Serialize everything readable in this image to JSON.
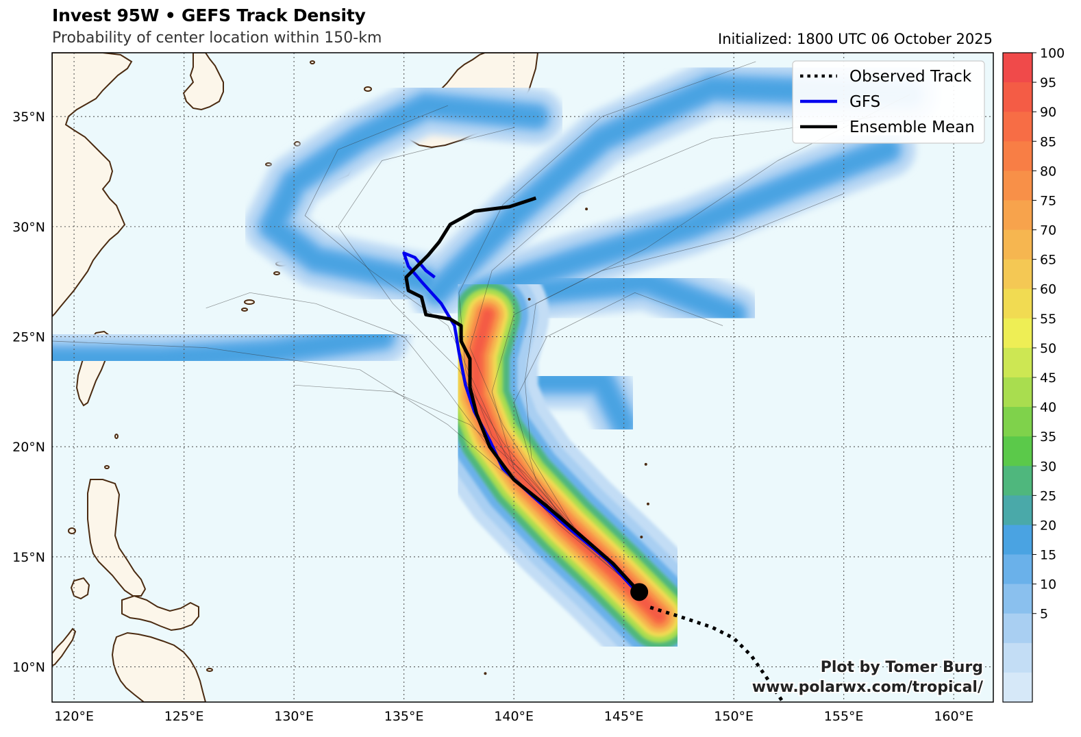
{
  "header": {
    "title": "Invest 95W • GEFS Track Density",
    "subtitle": "Probability of center location within 150-km",
    "initialized": "Initialized: 1800 UTC 06 October 2025"
  },
  "axes": {
    "lat_labels": [
      "35°N",
      "30°N",
      "25°N",
      "20°N",
      "15°N",
      "10°N"
    ],
    "lon_labels": [
      "120°E",
      "125°E",
      "130°E",
      "135°E",
      "140°E",
      "145°E",
      "150°E",
      "155°E",
      "160°E"
    ]
  },
  "legend": {
    "items": [
      {
        "label": "Observed Track",
        "style": "dotted",
        "color": "#000000"
      },
      {
        "label": "GFS",
        "style": "solid",
        "color": "#0000ee"
      },
      {
        "label": "Ensemble Mean",
        "style": "solid",
        "color": "#000000"
      }
    ]
  },
  "colorbar": {
    "labels": [
      "100",
      "95",
      "90",
      "85",
      "80",
      "75",
      "70",
      "65",
      "60",
      "55",
      "50",
      "45",
      "40",
      "35",
      "30",
      "25",
      "20",
      "15",
      "10",
      "5"
    ],
    "colors": [
      "#f04a4a",
      "#f45c45",
      "#f76d45",
      "#f87e45",
      "#f89048",
      "#f7a34c",
      "#f6b650",
      "#f4c854",
      "#f1db52",
      "#eeee55",
      "#cde753",
      "#a9dd4f",
      "#7fd24b",
      "#5bc94a",
      "#4fb77d",
      "#4aa9a9",
      "#4aa3e2",
      "#6ab1ea",
      "#8ac0ee",
      "#a9cff2",
      "#c3ddf5",
      "#d6e8f8"
    ]
  },
  "credit": {
    "line1": "Plot by Tomer Burg",
    "line2": "www.polarwx.com/tropical/"
  },
  "colors": {
    "ocean": "#ecf9fc",
    "land": "#fcf6ea",
    "coast": "#4a2a10",
    "grid": "#555555"
  },
  "tracks": {
    "current_position": {
      "lon": 145.7,
      "lat": 13.4
    },
    "observed": [
      [
        146.2,
        12.7
      ],
      [
        147.5,
        12.3
      ],
      [
        149.0,
        11.8
      ],
      [
        150.0,
        11.3
      ],
      [
        150.8,
        10.5
      ],
      [
        151.5,
        9.5
      ],
      [
        152.3,
        8.3
      ]
    ],
    "gfs": [
      [
        145.5,
        13.5
      ],
      [
        144.3,
        14.8
      ],
      [
        142.5,
        16.3
      ],
      [
        140.8,
        17.8
      ],
      [
        139.5,
        19.0
      ],
      [
        138.9,
        20.3
      ],
      [
        138.2,
        21.6
      ],
      [
        137.8,
        22.8
      ],
      [
        137.5,
        24.3
      ],
      [
        137.3,
        25.5
      ],
      [
        136.7,
        26.5
      ],
      [
        135.8,
        27.5
      ],
      [
        135.2,
        28.2
      ],
      [
        135.0,
        28.8
      ],
      [
        135.5,
        28.6
      ],
      [
        136.0,
        28.0
      ],
      [
        136.4,
        27.7
      ]
    ],
    "ensemble_mean": [
      [
        145.7,
        13.4
      ],
      [
        144.5,
        14.7
      ],
      [
        143.0,
        16.0
      ],
      [
        141.5,
        17.3
      ],
      [
        140.0,
        18.5
      ],
      [
        138.9,
        20.0
      ],
      [
        138.3,
        21.5
      ],
      [
        138.0,
        22.7
      ],
      [
        138.0,
        24.0
      ],
      [
        137.6,
        24.8
      ],
      [
        137.6,
        25.5
      ],
      [
        137.1,
        25.8
      ],
      [
        136.0,
        26.0
      ],
      [
        135.8,
        26.8
      ],
      [
        135.2,
        27.1
      ],
      [
        135.1,
        27.7
      ],
      [
        135.6,
        28.2
      ],
      [
        136.1,
        28.7
      ],
      [
        136.6,
        29.3
      ],
      [
        137.1,
        30.1
      ],
      [
        138.2,
        30.7
      ],
      [
        139.8,
        30.9
      ],
      [
        141.0,
        31.3
      ]
    ]
  },
  "density": {
    "axis": [
      [
        146.6,
        12.3
      ],
      [
        144.5,
        14.4
      ],
      [
        142.4,
        16.4
      ],
      [
        140.4,
        18.5
      ],
      [
        139.0,
        20.5
      ],
      [
        138.3,
        22.3
      ],
      [
        138.3,
        24.2
      ],
      [
        138.8,
        26.0
      ]
    ],
    "levels": [
      {
        "value": 5,
        "width": 5.6
      },
      {
        "value": 10,
        "width": 4.6
      },
      {
        "value": 20,
        "width": 3.7
      },
      {
        "value": 35,
        "width": 3.0
      },
      {
        "value": 50,
        "width": 2.4
      },
      {
        "value": 60,
        "width": 1.9
      },
      {
        "value": 70,
        "width": 1.5
      },
      {
        "value": 80,
        "width": 1.1
      },
      {
        "value": 90,
        "width": 0.7
      },
      {
        "value": 97,
        "width": 0.35
      }
    ],
    "branches": [
      [
        [
          136.0,
          27.5
        ],
        [
          131.0,
          28.5
        ],
        [
          129.0,
          30.0
        ],
        [
          130.0,
          32.0
        ],
        [
          133.0,
          34.0
        ],
        [
          136.0,
          35.5
        ],
        [
          141.0,
          35.0
        ]
      ],
      [
        [
          138.5,
          27.0
        ],
        [
          143.0,
          28.5
        ],
        [
          148.0,
          30.0
        ],
        [
          153.0,
          32.0
        ],
        [
          157.0,
          33.5
        ]
      ],
      [
        [
          136.5,
          27.0
        ],
        [
          140.0,
          30.5
        ],
        [
          144.0,
          34.0
        ],
        [
          149.0,
          36.3
        ],
        [
          158.0,
          36.0
        ]
      ],
      [
        [
          134.0,
          25.0
        ],
        [
          129.0,
          24.3
        ],
        [
          124.0,
          24.0
        ],
        [
          118.0,
          24.0
        ]
      ],
      [
        [
          140.5,
          27.0
        ],
        [
          146.0,
          27.5
        ],
        [
          150.0,
          26.0
        ]
      ],
      [
        [
          141.0,
          23.0
        ],
        [
          144.0,
          23.0
        ],
        [
          145.0,
          21.0
        ]
      ]
    ],
    "member_tracks": [
      [
        [
          145.7,
          13.4
        ],
        [
          142.0,
          16.5
        ],
        [
          139.0,
          19.8
        ],
        [
          137.0,
          22.5
        ],
        [
          135.0,
          25.0
        ],
        [
          131.0,
          26.5
        ],
        [
          128.0,
          27.0
        ],
        [
          126.0,
          26.3
        ]
      ],
      [
        [
          145.7,
          13.4
        ],
        [
          142.3,
          16.7
        ],
        [
          139.5,
          20.2
        ],
        [
          137.5,
          23.5
        ],
        [
          134.5,
          26.5
        ],
        [
          132.0,
          30.0
        ],
        [
          134.0,
          33.0
        ],
        [
          140.0,
          34.5
        ]
      ],
      [
        [
          145.7,
          13.4
        ],
        [
          143.0,
          16.0
        ],
        [
          140.0,
          19.0
        ],
        [
          139.0,
          22.5
        ],
        [
          140.0,
          26.0
        ],
        [
          144.0,
          28.0
        ],
        [
          150.0,
          29.5
        ],
        [
          155.0,
          31.5
        ]
      ],
      [
        [
          145.7,
          13.4
        ],
        [
          142.0,
          17.0
        ],
        [
          139.5,
          21.0
        ],
        [
          138.0,
          24.5
        ],
        [
          139.0,
          28.0
        ],
        [
          143.0,
          31.5
        ],
        [
          149.0,
          34.0
        ],
        [
          156.5,
          35.0
        ]
      ],
      [
        [
          145.7,
          13.4
        ],
        [
          143.5,
          15.3
        ],
        [
          140.5,
          18.0
        ],
        [
          137.0,
          21.0
        ],
        [
          133.0,
          23.5
        ],
        [
          126.0,
          24.5
        ],
        [
          119.0,
          24.8
        ]
      ],
      [
        [
          145.7,
          13.4
        ],
        [
          142.8,
          16.2
        ],
        [
          140.8,
          19.5
        ],
        [
          140.5,
          23.0
        ],
        [
          141.0,
          26.5
        ],
        [
          146.0,
          29.0
        ],
        [
          152.0,
          33.0
        ],
        [
          158.0,
          36.0
        ]
      ],
      [
        [
          145.7,
          13.4
        ],
        [
          142.5,
          16.5
        ],
        [
          139.8,
          19.2
        ],
        [
          138.6,
          22.0
        ],
        [
          137.0,
          25.5
        ],
        [
          133.5,
          28.0
        ],
        [
          130.5,
          30.5
        ],
        [
          132.0,
          33.5
        ],
        [
          137.0,
          35.5
        ]
      ],
      [
        [
          145.7,
          13.4
        ],
        [
          143.2,
          15.8
        ],
        [
          141.0,
          18.5
        ],
        [
          140.0,
          22.0
        ],
        [
          141.5,
          25.0
        ],
        [
          145.5,
          27.0
        ],
        [
          149.5,
          25.5
        ]
      ],
      [
        [
          145.7,
          13.4
        ],
        [
          142.0,
          16.8
        ],
        [
          139.0,
          20.5
        ],
        [
          137.8,
          23.5
        ],
        [
          137.5,
          27.0
        ],
        [
          139.5,
          31.0
        ],
        [
          144.0,
          35.0
        ],
        [
          151.0,
          37.5
        ]
      ],
      [
        [
          145.7,
          13.4
        ],
        [
          143.0,
          16.0
        ],
        [
          140.5,
          18.8
        ],
        [
          138.0,
          21.0
        ],
        [
          134.5,
          22.5
        ],
        [
          130.0,
          22.8
        ]
      ]
    ],
    "specks": [
      [
        140.7,
        26.7
      ],
      [
        146.0,
        19.2
      ],
      [
        146.1,
        17.4
      ],
      [
        145.8,
        15.9
      ],
      [
        143.3,
        30.8
      ],
      [
        138.7,
        9.7
      ]
    ]
  }
}
